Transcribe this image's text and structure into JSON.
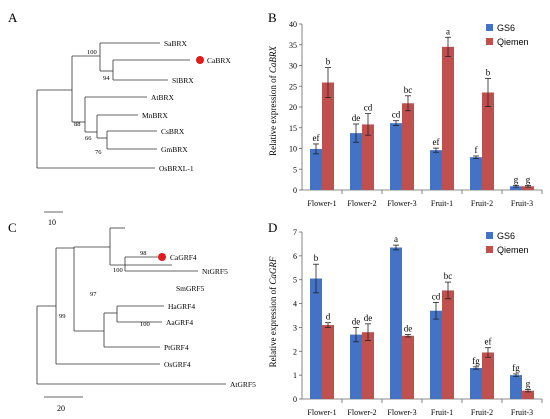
{
  "panels": {
    "A": {
      "label": "A",
      "scale_label": "10",
      "highlight_color": "#e31a1c",
      "taxa": [
        "SaBRX",
        "CaBRX",
        "SlBRX",
        "AtBRX",
        "MnBRX",
        "CsBRX",
        "GmBRX",
        "OsBRXL-1"
      ],
      "bootstrap": [
        "100",
        "94",
        "88",
        "66",
        "76"
      ]
    },
    "B": {
      "label": "B"
    },
    "C": {
      "label": "C",
      "scale_label": "20",
      "highlight_color": "#e31a1c",
      "taxa": [
        "CaGRF4",
        "NtGRF5",
        "SmGRF5",
        "HaGRF4",
        "AaGRF4",
        "PtGRF4",
        "OsGRF4",
        "AtGRF5"
      ],
      "bootstrap": [
        "98",
        "100",
        "97",
        "99",
        "100"
      ]
    },
    "D": {
      "label": "D"
    }
  },
  "chart_data": [
    {
      "type": "bar",
      "panel": "B",
      "categories": [
        "Flower-1",
        "Flower-2",
        "Flower-3",
        "Fruit-1",
        "Fruit-2",
        "Fruit-3"
      ],
      "ylabel_prefix": "Relative expression of ",
      "ylabel_gene": "CaBRX",
      "ylim": [
        0,
        40
      ],
      "yticks": [
        0,
        5,
        10,
        15,
        20,
        25,
        30,
        35,
        40
      ],
      "legend_position": "top-right",
      "series": [
        {
          "name": "GS6",
          "color": "#4472c4",
          "values": [
            9.9,
            13.7,
            16.1,
            9.6,
            7.9,
            0.9
          ],
          "errors": [
            1.2,
            2.2,
            0.6,
            0.5,
            0.3,
            0.2
          ],
          "labels": [
            "ef",
            "de",
            "cd",
            "ef",
            "f",
            "g"
          ]
        },
        {
          "name": "Qiemen",
          "color": "#c0504d",
          "values": [
            25.9,
            15.8,
            20.9,
            34.5,
            23.5,
            0.9
          ],
          "errors": [
            3.6,
            2.6,
            1.8,
            2.3,
            3.4,
            0.2
          ],
          "labels": [
            "b",
            "cd",
            "bc",
            "a",
            "b",
            "g"
          ]
        }
      ]
    },
    {
      "type": "bar",
      "panel": "D",
      "categories": [
        "Flower-1",
        "Flower-2",
        "Flower-3",
        "Fruit-1",
        "Fruit-2",
        "Fruit-3"
      ],
      "ylabel_prefix": "Relative expression of ",
      "ylabel_gene": "CaGRF",
      "ylim": [
        0,
        7
      ],
      "yticks": [
        0,
        1,
        2,
        3,
        4,
        5,
        6,
        7
      ],
      "legend_position": "top-right",
      "series": [
        {
          "name": "GS6",
          "color": "#4472c4",
          "values": [
            5.05,
            2.7,
            6.35,
            3.7,
            1.3,
            1.0
          ],
          "errors": [
            0.6,
            0.3,
            0.1,
            0.35,
            0.05,
            0.05
          ],
          "labels": [
            "b",
            "de",
            "a",
            "cd",
            "fg",
            "fg"
          ]
        },
        {
          "name": "Qiemen",
          "color": "#c0504d",
          "values": [
            3.1,
            2.8,
            2.65,
            4.55,
            1.95,
            0.35
          ],
          "errors": [
            0.1,
            0.35,
            0.05,
            0.35,
            0.2,
            0.05
          ],
          "labels": [
            "d",
            "de",
            "de",
            "bc",
            "ef",
            "g"
          ]
        }
      ]
    }
  ]
}
